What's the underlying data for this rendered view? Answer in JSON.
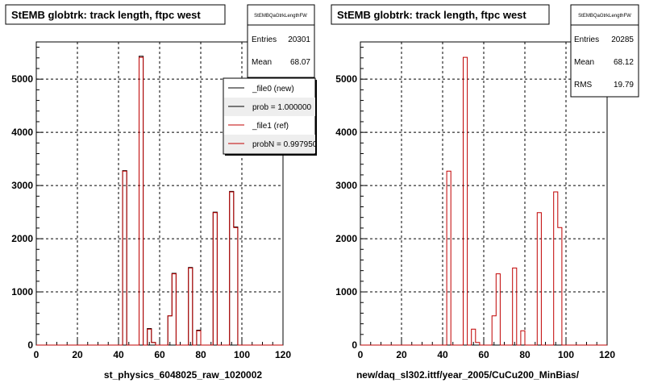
{
  "window": {
    "background": "#ffffff"
  },
  "colors": {
    "new_series": "#000000",
    "ref_series": "#c00000",
    "grid": "#000000",
    "frame": "#000000"
  },
  "panels": [
    {
      "title": "StEMB globtrk: track length, ftpc west",
      "xlabel": "st_physics_6048025_raw_1020002",
      "stats": {
        "name": "StEMBQaGtrkLengthFW",
        "rows": [
          {
            "label": "Entries",
            "value": "20301"
          },
          {
            "label": "Mean",
            "value": "68.07"
          }
        ]
      },
      "legend": {
        "entries": [
          {
            "text": "_file0 (new)",
            "color": "#000000"
          },
          {
            "text": "prob = 1.000000",
            "color": "#000000"
          },
          {
            "text": "_file1 (ref)",
            "color": "#c00000"
          },
          {
            "text": "probN = 0.997950",
            "color": "#c00000"
          }
        ]
      }
    },
    {
      "title": "StEMB globtrk: track length, ftpc west",
      "xlabel": "new/daq_sl302.ittf/year_2005/CuCu200_MinBias/",
      "stats": {
        "name": "StEMBQaGtrkLengthFW",
        "rows": [
          {
            "label": "Entries",
            "value": "20285"
          },
          {
            "label": "Mean",
            "value": "68.12"
          },
          {
            "label": "RMS",
            "value": "19.79"
          }
        ]
      }
    }
  ],
  "chart_data": [
    {
      "type": "bar",
      "title": "StEMB globtrk: track length, ftpc west",
      "xlabel": "st_physics_6048025_raw_1020002",
      "ylabel": "",
      "xlim": [
        0,
        120
      ],
      "ylim": [
        0,
        5700
      ],
      "xticks": [
        0,
        20,
        40,
        60,
        80,
        100,
        120
      ],
      "yticks": [
        0,
        1000,
        2000,
        3000,
        4000,
        5000
      ],
      "grid": true,
      "bin_width": 2,
      "bin_edges_start": 0,
      "series": [
        {
          "name": "_file0 (new)",
          "values": [
            0,
            0,
            0,
            0,
            0,
            0,
            0,
            0,
            0,
            0,
            0,
            0,
            0,
            0,
            0,
            0,
            0,
            0,
            0,
            0,
            0,
            3280,
            0,
            0,
            0,
            5430,
            0,
            310,
            50,
            0,
            0,
            0,
            550,
            1350,
            0,
            0,
            0,
            1460,
            0,
            280,
            0,
            0,
            0,
            2500,
            0,
            0,
            0,
            2890,
            2220,
            0,
            0,
            0,
            0,
            0,
            0,
            0,
            0,
            0,
            0,
            0
          ]
        },
        {
          "name": "_file1 (ref)",
          "values": [
            0,
            0,
            0,
            0,
            0,
            0,
            0,
            0,
            0,
            0,
            0,
            0,
            0,
            0,
            0,
            0,
            0,
            0,
            0,
            0,
            0,
            3270,
            0,
            0,
            0,
            5410,
            0,
            300,
            50,
            0,
            0,
            0,
            550,
            1340,
            0,
            0,
            0,
            1450,
            0,
            270,
            0,
            0,
            0,
            2490,
            0,
            0,
            0,
            2880,
            2210,
            0,
            0,
            0,
            0,
            0,
            0,
            0,
            0,
            0,
            0,
            0
          ]
        }
      ]
    },
    {
      "type": "bar",
      "title": "StEMB globtrk: track length, ftpc west",
      "xlabel": "new/daq_sl302.ittf/year_2005/CuCu200_MinBias/",
      "ylabel": "",
      "xlim": [
        0,
        120
      ],
      "ylim": [
        0,
        5700
      ],
      "xticks": [
        0,
        20,
        40,
        60,
        80,
        100,
        120
      ],
      "yticks": [
        0,
        1000,
        2000,
        3000,
        4000,
        5000
      ],
      "grid": true,
      "bin_width": 2,
      "bin_edges_start": 0,
      "series": [
        {
          "name": "",
          "values": [
            0,
            0,
            0,
            0,
            0,
            0,
            0,
            0,
            0,
            0,
            0,
            0,
            0,
            0,
            0,
            0,
            0,
            0,
            0,
            0,
            0,
            3270,
            0,
            0,
            0,
            5410,
            0,
            300,
            50,
            0,
            0,
            0,
            550,
            1340,
            0,
            0,
            0,
            1450,
            0,
            270,
            0,
            0,
            0,
            2490,
            0,
            0,
            0,
            2880,
            2210,
            0,
            0,
            0,
            0,
            0,
            0,
            0,
            0,
            0,
            0,
            0
          ]
        }
      ]
    }
  ]
}
